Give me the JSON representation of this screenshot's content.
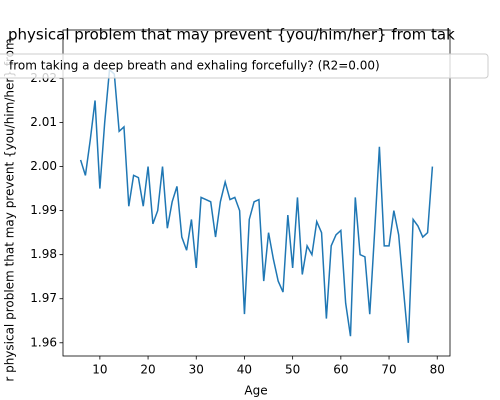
{
  "chart_data": {
    "type": "line",
    "title": "physical problem that may prevent {you/him/her} from tak",
    "xlabel": "Age",
    "ylabel": "r physical problem that may prevent {you/him/her} from",
    "x": [
      6,
      7,
      8,
      9,
      10,
      11,
      12,
      13,
      14,
      15,
      16,
      17,
      18,
      19,
      20,
      21,
      22,
      23,
      24,
      25,
      26,
      27,
      28,
      29,
      30,
      31,
      32,
      33,
      34,
      35,
      36,
      37,
      38,
      39,
      40,
      41,
      42,
      43,
      44,
      45,
      46,
      47,
      48,
      49,
      50,
      51,
      52,
      53,
      54,
      55,
      56,
      57,
      58,
      59,
      60,
      61,
      62,
      63,
      64,
      65,
      66,
      67,
      68,
      69,
      70,
      71,
      72,
      73,
      74,
      75,
      76,
      77,
      78,
      79
    ],
    "series": [
      {
        "name": "from taking a deep breath and exhaling forcefully? (R2=0.00)",
        "color": "#1f77b4",
        "values": [
          2.0015,
          1.998,
          2.006,
          2.015,
          1.995,
          2.01,
          2.022,
          2.021,
          2.008,
          2.009,
          1.991,
          1.998,
          1.9975,
          1.991,
          2.0,
          1.987,
          1.99,
          2.0,
          1.986,
          1.992,
          1.9955,
          1.984,
          1.981,
          1.988,
          1.977,
          1.993,
          1.9925,
          1.992,
          1.984,
          1.992,
          1.9965,
          1.9925,
          1.993,
          1.99,
          1.9665,
          1.988,
          1.992,
          1.9925,
          1.974,
          1.985,
          1.979,
          1.974,
          1.9715,
          1.989,
          1.977,
          1.993,
          1.9755,
          1.982,
          1.98,
          1.9875,
          1.985,
          1.9655,
          1.982,
          1.9845,
          1.9855,
          1.969,
          1.9615,
          1.993,
          1.98,
          1.9795,
          1.9665,
          1.985,
          2.0045,
          1.982,
          1.982,
          1.99,
          1.9845,
          1.972,
          1.96,
          1.988,
          1.9865,
          1.984,
          1.985,
          2.0
        ]
      }
    ],
    "xlim": [
      2.35,
      82.65
    ],
    "xticks": [
      10,
      20,
      30,
      40,
      50,
      60,
      70,
      80
    ],
    "ylim": [
      1.957,
      2.031
    ],
    "yticks": [
      1.96,
      1.97,
      1.98,
      1.99,
      {
        "value": 2,
        "label": "2.00"
      },
      2.01,
      2.02
    ],
    "legend": "upper center"
  }
}
